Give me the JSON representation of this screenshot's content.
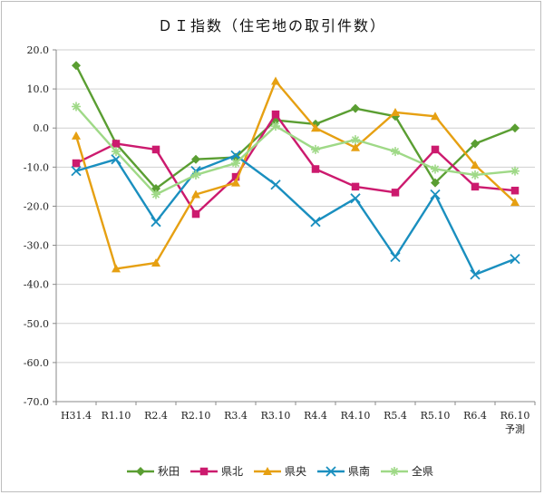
{
  "chart_data": {
    "type": "line",
    "title": "ＤＩ指数（住宅地の取引件数）",
    "xlabel": "",
    "ylabel": "",
    "ylim": [
      -70,
      20
    ],
    "ytick_step": 10,
    "ytick_labels": [
      "20.0",
      "10.0",
      "0.0",
      "-10.0",
      "-20.0",
      "-30.0",
      "-40.0",
      "-50.0",
      "-60.0",
      "-70.0"
    ],
    "grid": true,
    "legend_position": "bottom",
    "categories": [
      "H31.4",
      "R1.10",
      "R2.4",
      "R2.10",
      "R3.4",
      "R3.10",
      "R4.4",
      "R4.10",
      "R5.4",
      "R5.10",
      "R6.4",
      "R6.10\n予測"
    ],
    "series": [
      {
        "name": "秋田",
        "color": "#5a9e32",
        "marker": "diamond",
        "values": [
          16,
          -4,
          -15.5,
          -8,
          -7.5,
          2,
          1,
          5,
          3,
          -14,
          -4,
          0
        ]
      },
      {
        "name": "県北",
        "color": "#cc1a6e",
        "marker": "square",
        "values": [
          -9,
          -4,
          -5.5,
          -22,
          -12.5,
          3.5,
          -10.5,
          -15,
          -16.5,
          -5.5,
          -15,
          -16
        ]
      },
      {
        "name": "県央",
        "color": "#e6a012",
        "marker": "triangle",
        "values": [
          -2,
          -36,
          -34.5,
          -17,
          -14,
          12,
          0,
          -5,
          4,
          3,
          -9.5,
          -19
        ]
      },
      {
        "name": "県南",
        "color": "#1a8fbf",
        "marker": "x",
        "values": [
          -11,
          -8,
          -24,
          -11,
          -7,
          -14.5,
          -24,
          -18,
          -33,
          -17,
          -37.5,
          -33.5
        ]
      },
      {
        "name": "全県",
        "color": "#9fd987",
        "marker": "star",
        "values": [
          5.5,
          -6,
          -17,
          -12,
          -9,
          0.5,
          -5.5,
          -3,
          -6,
          -10.5,
          -12,
          -11
        ]
      }
    ]
  }
}
